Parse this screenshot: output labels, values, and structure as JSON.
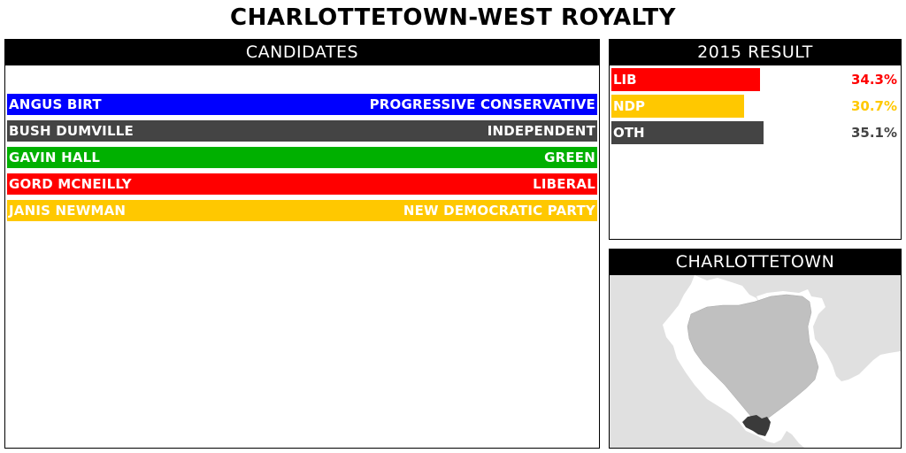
{
  "title": "CHARLOTTETOWN-WEST ROYALTY",
  "candidates": {
    "header": "CANDIDATES",
    "rows": [
      {
        "name": "ANGUS BIRT",
        "party": "PROGRESSIVE CONSERVATIVE",
        "color": "#0000ff"
      },
      {
        "name": "BUSH DUMVILLE",
        "party": "INDEPENDENT",
        "color": "#444444"
      },
      {
        "name": "GAVIN HALL",
        "party": "GREEN",
        "color": "#00b000"
      },
      {
        "name": "GORD MCNEILLY",
        "party": "LIBERAL",
        "color": "#ff0000"
      },
      {
        "name": "JANIS NEWMAN",
        "party": "NEW DEMOCRATIC PARTY",
        "color": "#ffc800"
      }
    ]
  },
  "result": {
    "header": "2015 RESULT",
    "rows": [
      {
        "party": "LIB",
        "pct_label": "34.3%",
        "value": 34.3,
        "color": "#ff0000",
        "text_color": "#ff0000"
      },
      {
        "party": "NDP",
        "pct_label": "30.7%",
        "value": 30.7,
        "color": "#ffc800",
        "text_color": "#ffc800"
      },
      {
        "party": "OTH",
        "pct_label": "35.1%",
        "value": 35.1,
        "color": "#444444",
        "text_color": "#444444"
      }
    ]
  },
  "map": {
    "header": "CHARLOTTETOWN",
    "colors": {
      "water": "#ffffff",
      "land": "#e0e0e0",
      "city": "#c0c0c0",
      "district": "#3a3a3a"
    }
  }
}
